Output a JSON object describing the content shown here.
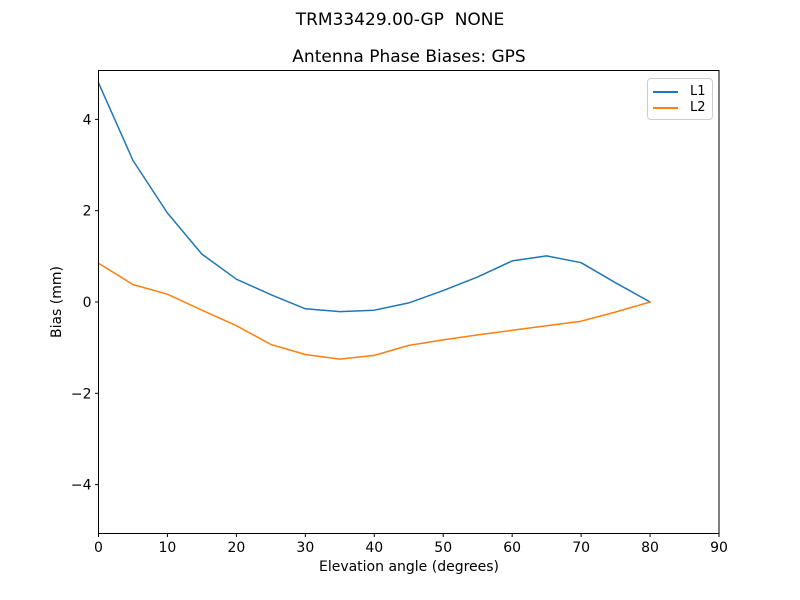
{
  "chart": {
    "suptitle": "TRM33429.00-GP  NONE",
    "title": "Antenna Phase Biases: GPS",
    "xlabel": "Elevation angle (degrees)",
    "ylabel": "Bias (mm)"
  },
  "chart_data": {
    "type": "line",
    "title": "Antenna Phase Biases: GPS",
    "suptitle": "TRM33429.00-GP  NONE",
    "xlabel": "Elevation angle (degrees)",
    "ylabel": "Bias (mm)",
    "x": [
      0,
      5,
      10,
      15,
      20,
      25,
      30,
      35,
      40,
      45,
      50,
      55,
      60,
      65,
      70,
      75,
      80
    ],
    "series": [
      {
        "name": "L1",
        "color": "#1f77b4",
        "values": [
          4.8,
          3.1,
          1.95,
          1.05,
          0.5,
          0.16,
          -0.15,
          -0.21,
          -0.18,
          -0.02,
          0.25,
          0.55,
          0.9,
          1.01,
          0.86,
          0.42,
          0.0
        ]
      },
      {
        "name": "L2",
        "color": "#ff7f0e",
        "values": [
          0.85,
          0.38,
          0.17,
          -0.18,
          -0.52,
          -0.93,
          -1.15,
          -1.25,
          -1.17,
          -0.95,
          -0.83,
          -0.72,
          -0.62,
          -0.52,
          -0.42,
          -0.22,
          0.0
        ]
      }
    ],
    "xlim": [
      0,
      90
    ],
    "ylim": [
      -5.07,
      5.07
    ],
    "xticks": [
      0,
      10,
      20,
      30,
      40,
      50,
      60,
      70,
      80,
      90
    ],
    "yticks": [
      -4,
      -2,
      0,
      2,
      4
    ],
    "grid": false,
    "legend_position": "upper right",
    "axis_color": "#000000",
    "background": "#ffffff"
  }
}
